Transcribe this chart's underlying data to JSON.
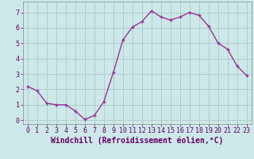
{
  "x": [
    0,
    1,
    2,
    3,
    4,
    5,
    6,
    7,
    8,
    9,
    10,
    11,
    12,
    13,
    14,
    15,
    16,
    17,
    18,
    19,
    20,
    21,
    22,
    23
  ],
  "y": [
    2.2,
    1.9,
    1.1,
    1.0,
    1.0,
    0.6,
    0.05,
    0.3,
    1.2,
    3.1,
    5.2,
    6.05,
    6.4,
    7.1,
    6.7,
    6.5,
    6.7,
    7.0,
    6.8,
    6.1,
    5.0,
    4.6,
    3.5,
    2.9
  ],
  "line_color": "#993399",
  "marker_color": "#993399",
  "bg_color": "#cce8e8",
  "grid_color": "#b0c8c8",
  "xlabel": "Windchill (Refroidissement éolien,°C)",
  "xlim": [
    -0.5,
    23.5
  ],
  "ylim": [
    -0.25,
    7.7
  ],
  "yticks": [
    0,
    1,
    2,
    3,
    4,
    5,
    6,
    7
  ],
  "xticks": [
    0,
    1,
    2,
    3,
    4,
    5,
    6,
    7,
    8,
    9,
    10,
    11,
    12,
    13,
    14,
    15,
    16,
    17,
    18,
    19,
    20,
    21,
    22,
    23
  ],
  "tick_fontsize": 6,
  "xlabel_fontsize": 7,
  "linewidth": 1.0,
  "markersize": 3.0
}
